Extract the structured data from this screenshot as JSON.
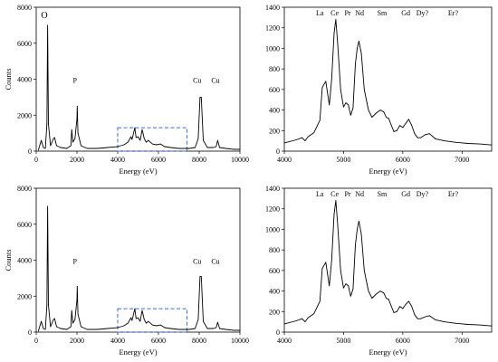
{
  "chart_data": [
    {
      "type": "line",
      "panel": "top-left",
      "xlabel": "Energy (eV)",
      "ylabel": "Counts",
      "xlim": [
        0,
        10000
      ],
      "ylim": [
        0,
        8000
      ],
      "xticks": [
        0,
        2000,
        4000,
        6000,
        8000,
        10000
      ],
      "yticks": [
        0,
        2000,
        4000,
        6000,
        8000
      ],
      "grid": false,
      "series": [
        {
          "x": [
            100,
            250,
            350,
            450,
            525,
            560,
            600,
            700,
            850,
            900,
            1000,
            1200,
            1500,
            1700,
            1740,
            1800,
            1900,
            2000,
            2013,
            2050,
            2200,
            2500,
            3000,
            3500,
            4000,
            4300,
            4500,
            4650,
            4700,
            4840,
            4900,
            5000,
            5100,
            5200,
            5300,
            5400,
            5500,
            5700,
            5900,
            6100,
            6300,
            6600,
            7000,
            7500,
            7800,
            7950,
            8040,
            8100,
            8200,
            8400,
            8700,
            8830,
            8905,
            9000,
            9300,
            9700,
            10000
          ],
          "y": [
            50,
            600,
            200,
            150,
            1500,
            7000,
            1500,
            300,
            700,
            750,
            300,
            200,
            150,
            300,
            1200,
            500,
            700,
            1800,
            2500,
            1000,
            300,
            150,
            150,
            200,
            250,
            350,
            500,
            800,
            650,
            1300,
            750,
            800,
            600,
            1200,
            700,
            500,
            600,
            400,
            350,
            400,
            250,
            200,
            150,
            150,
            200,
            700,
            3000,
            3000,
            600,
            200,
            200,
            250,
            600,
            200,
            150,
            100,
            100
          ]
        }
      ],
      "annotations": [
        {
          "text": "O",
          "x": 400,
          "y": 7400
        },
        {
          "text": "P",
          "x": 1900,
          "y": 3800
        },
        {
          "text": "Cu",
          "x": 7900,
          "y": 3800
        },
        {
          "text": "Cu",
          "x": 8800,
          "y": 3800
        }
      ],
      "highlight_region": {
        "x": [
          4000,
          7400
        ],
        "y": [
          0,
          1300
        ]
      }
    },
    {
      "type": "line",
      "panel": "top-right",
      "xlabel": "Energy (eV)",
      "ylabel": "",
      "xlim": [
        4000,
        7500
      ],
      "ylim": [
        0,
        1400
      ],
      "xticks": [
        4000,
        5000,
        6000,
        7000
      ],
      "yticks": [
        0,
        200,
        400,
        600,
        800,
        1000,
        1200,
        1400
      ],
      "grid": false,
      "series": [
        {
          "x": [
            4000,
            4200,
            4300,
            4350,
            4400,
            4500,
            4600,
            4640,
            4700,
            4760,
            4800,
            4840,
            4870,
            4900,
            4950,
            5000,
            5040,
            5080,
            5120,
            5160,
            5200,
            5230,
            5260,
            5300,
            5350,
            5420,
            5480,
            5550,
            5620,
            5680,
            5720,
            5760,
            5800,
            5850,
            5900,
            5950,
            6000,
            6050,
            6100,
            6150,
            6200,
            6250,
            6300,
            6380,
            6450,
            6550,
            6700,
            6900,
            7100,
            7300,
            7500
          ],
          "y": [
            80,
            110,
            130,
            100,
            140,
            180,
            300,
            620,
            680,
            450,
            700,
            1150,
            1280,
            1050,
            600,
            430,
            470,
            450,
            350,
            420,
            850,
            1000,
            1070,
            950,
            600,
            400,
            330,
            370,
            400,
            380,
            330,
            320,
            260,
            190,
            200,
            250,
            230,
            270,
            310,
            250,
            170,
            130,
            130,
            160,
            170,
            120,
            100,
            85,
            75,
            70,
            60
          ]
        }
      ],
      "annotations": [
        {
          "text": "La",
          "x": 4600,
          "y": 1320
        },
        {
          "text": "Ce",
          "x": 4850,
          "y": 1320
        },
        {
          "text": "Pr",
          "x": 5070,
          "y": 1320
        },
        {
          "text": "Nd",
          "x": 5270,
          "y": 1320
        },
        {
          "text": "Sm",
          "x": 5650,
          "y": 1320
        },
        {
          "text": "Gd",
          "x": 6050,
          "y": 1320
        },
        {
          "text": "Dy?",
          "x": 6330,
          "y": 1320
        },
        {
          "text": "Er?",
          "x": 6850,
          "y": 1320
        }
      ]
    },
    {
      "type": "line",
      "panel": "bottom-left",
      "xlabel": "Energy (eV)",
      "ylabel": "Counts",
      "xlim": [
        0,
        10000
      ],
      "ylim": [
        0,
        8000
      ],
      "xticks": [
        0,
        2000,
        4000,
        6000,
        8000,
        10000
      ],
      "yticks": [
        0,
        2000,
        4000,
        6000,
        8000
      ],
      "grid": false,
      "series": [
        {
          "x": [
            100,
            250,
            350,
            450,
            525,
            560,
            600,
            700,
            850,
            900,
            1000,
            1200,
            1500,
            1700,
            1740,
            1800,
            1900,
            2000,
            2013,
            2050,
            2200,
            2500,
            3000,
            3500,
            4000,
            4300,
            4500,
            4650,
            4700,
            4840,
            4900,
            5000,
            5100,
            5200,
            5300,
            5400,
            5500,
            5700,
            5900,
            6100,
            6300,
            6600,
            7000,
            7500,
            7800,
            7950,
            8040,
            8100,
            8200,
            8400,
            8700,
            8830,
            8905,
            9000,
            9300,
            9700,
            10000
          ],
          "y": [
            50,
            600,
            200,
            150,
            1500,
            7000,
            1500,
            300,
            700,
            750,
            300,
            200,
            150,
            300,
            1200,
            500,
            700,
            1800,
            2550,
            1000,
            300,
            150,
            150,
            200,
            250,
            350,
            500,
            800,
            650,
            1300,
            750,
            800,
            600,
            1200,
            700,
            500,
            600,
            400,
            350,
            400,
            250,
            200,
            150,
            150,
            200,
            700,
            3100,
            3100,
            600,
            200,
            200,
            250,
            550,
            200,
            150,
            100,
            100
          ]
        }
      ],
      "annotations": [
        {
          "text": "P",
          "x": 1900,
          "y": 3800
        },
        {
          "text": "Cu",
          "x": 7900,
          "y": 3800
        },
        {
          "text": "Cu",
          "x": 8800,
          "y": 3800
        }
      ],
      "highlight_region": {
        "x": [
          4000,
          7400
        ],
        "y": [
          0,
          1300
        ]
      }
    },
    {
      "type": "line",
      "panel": "bottom-right",
      "xlabel": "Energy (eV)",
      "ylabel": "",
      "xlim": [
        4000,
        7500
      ],
      "ylim": [
        0,
        1400
      ],
      "xticks": [
        4000,
        5000,
        6000,
        7000
      ],
      "yticks": [
        0,
        200,
        400,
        600,
        800,
        1000,
        1200,
        1400
      ],
      "grid": false,
      "series": [
        {
          "x": [
            4000,
            4200,
            4300,
            4350,
            4400,
            4500,
            4600,
            4640,
            4700,
            4760,
            4800,
            4840,
            4870,
            4900,
            4950,
            5000,
            5040,
            5080,
            5120,
            5160,
            5200,
            5230,
            5260,
            5300,
            5350,
            5420,
            5480,
            5550,
            5620,
            5680,
            5720,
            5760,
            5800,
            5850,
            5900,
            5950,
            6000,
            6050,
            6100,
            6150,
            6200,
            6250,
            6300,
            6380,
            6450,
            6550,
            6700,
            6900,
            7100,
            7300,
            7500
          ],
          "y": [
            80,
            110,
            130,
            100,
            140,
            180,
            300,
            620,
            680,
            450,
            700,
            1150,
            1280,
            1050,
            600,
            430,
            470,
            450,
            350,
            420,
            850,
            1000,
            1080,
            950,
            600,
            400,
            330,
            370,
            400,
            380,
            330,
            320,
            260,
            190,
            200,
            250,
            230,
            270,
            300,
            250,
            170,
            130,
            130,
            150,
            160,
            120,
            100,
            85,
            75,
            70,
            60
          ]
        }
      ],
      "annotations": [
        {
          "text": "La",
          "x": 4600,
          "y": 1320
        },
        {
          "text": "Ce",
          "x": 4850,
          "y": 1320
        },
        {
          "text": "Pr",
          "x": 5070,
          "y": 1320
        },
        {
          "text": "Nd",
          "x": 5270,
          "y": 1320
        },
        {
          "text": "Sm",
          "x": 5650,
          "y": 1320
        },
        {
          "text": "Gd",
          "x": 6050,
          "y": 1320
        },
        {
          "text": "Dy?",
          "x": 6330,
          "y": 1320
        },
        {
          "text": "Er?",
          "x": 6850,
          "y": 1320
        }
      ]
    }
  ]
}
